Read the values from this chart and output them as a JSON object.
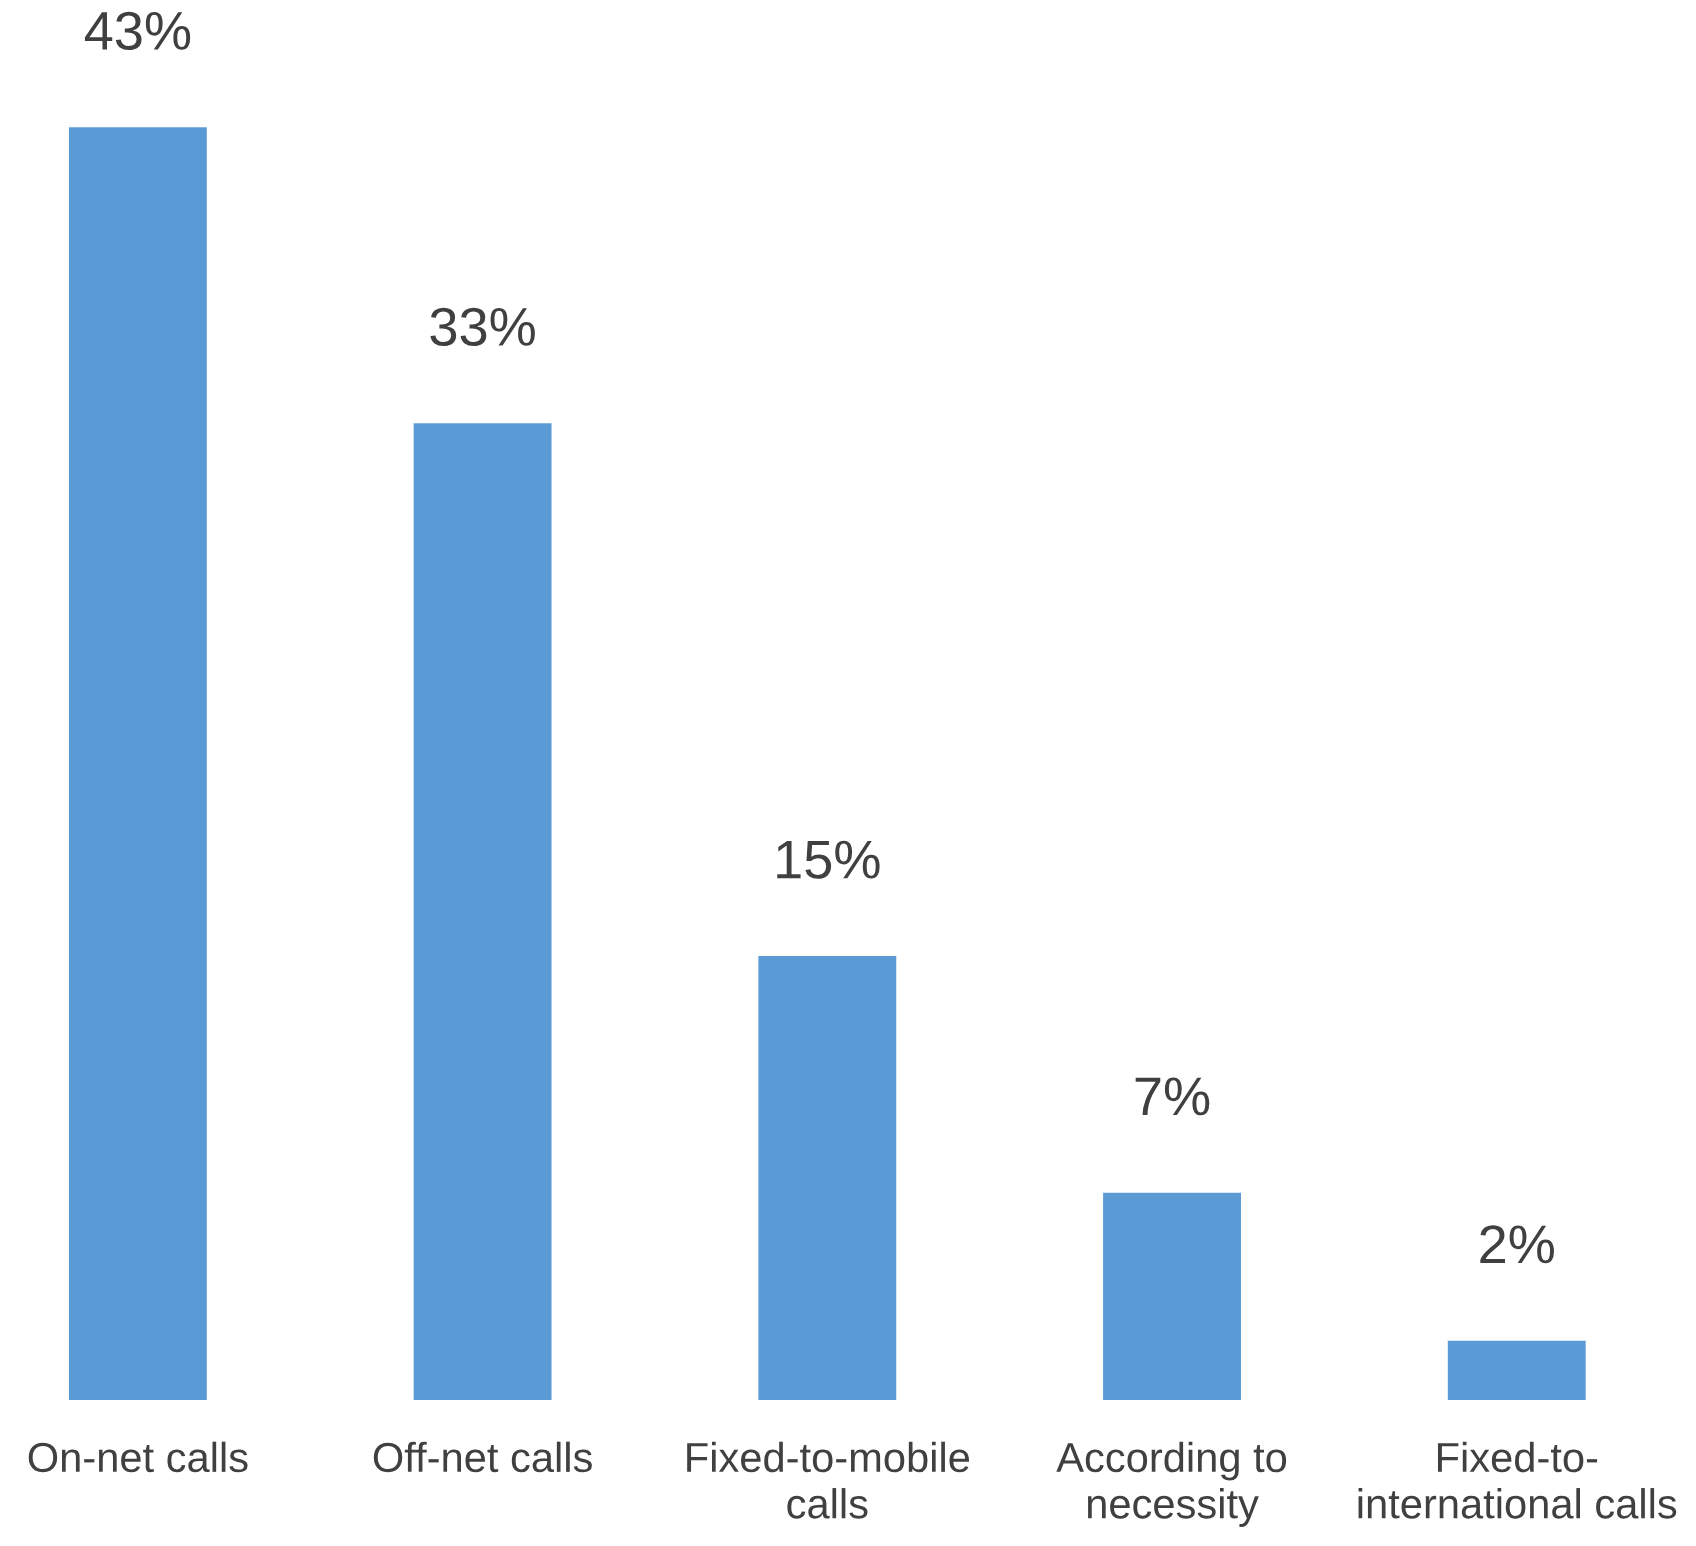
{
  "chart_data": {
    "type": "bar",
    "categories": [
      "On-net calls",
      "Off-net calls",
      "Fixed-to-mobile calls",
      "According to necessity",
      "Fixed-to-international calls"
    ],
    "values": [
      43,
      33,
      15,
      7,
      2
    ],
    "color": "#5b9bd5",
    "value_labels": [
      "43%",
      "33%",
      "15%",
      "7%",
      "2%"
    ]
  }
}
